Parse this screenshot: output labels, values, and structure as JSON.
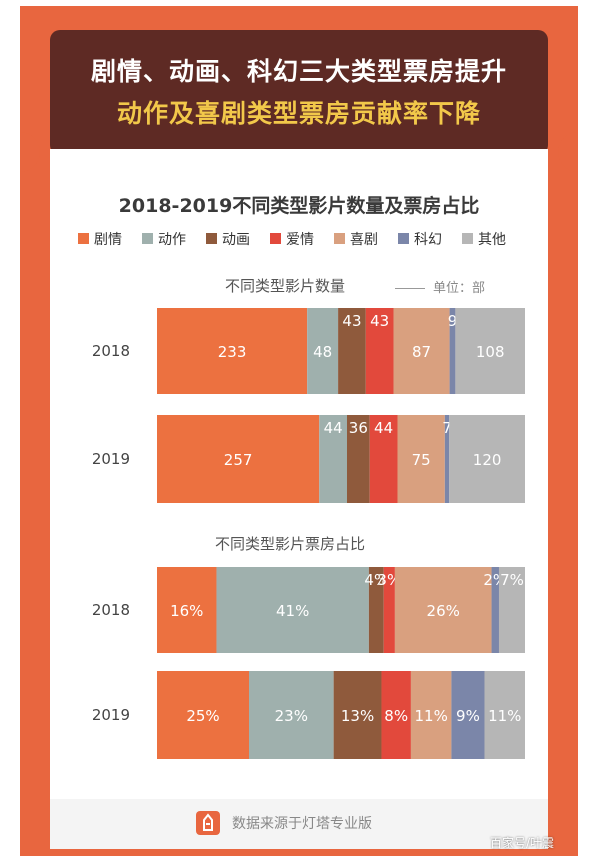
{
  "banner": {
    "line1": "剧情、动画、科幻三大类型票房提升",
    "line2": "动作及喜剧类型票房贡献率下降"
  },
  "chart_title": "2018-2019不同类型影片数量及票房占比",
  "legend": [
    {
      "label": "剧情",
      "color": "#ec7140"
    },
    {
      "label": "动作",
      "color": "#9fb0ad"
    },
    {
      "label": "动画",
      "color": "#8f5a3c"
    },
    {
      "label": "爱情",
      "color": "#e2493c"
    },
    {
      "label": "喜剧",
      "color": "#d9a07f"
    },
    {
      "label": "科幻",
      "color": "#7b86a9"
    },
    {
      "label": "其他",
      "color": "#b6b6b6"
    }
  ],
  "sections": {
    "count_title": "不同类型影片数量",
    "count_unit": "单位：部",
    "share_title": "不同类型影片票房占比"
  },
  "chart_data": [
    {
      "type": "bar",
      "stacked": true,
      "orientation": "horizontal",
      "title": "不同类型影片数量",
      "unit": "单位：部",
      "categories": [
        "2018",
        "2019"
      ],
      "series": [
        {
          "name": "剧情",
          "values": [
            233,
            257
          ]
        },
        {
          "name": "动作",
          "values": [
            48,
            44
          ]
        },
        {
          "name": "动画",
          "values": [
            43,
            36
          ]
        },
        {
          "name": "爱情",
          "values": [
            43,
            44
          ]
        },
        {
          "name": "喜剧",
          "values": [
            87,
            75
          ]
        },
        {
          "name": "科幻",
          "values": [
            9,
            7
          ]
        },
        {
          "name": "其他",
          "values": [
            108,
            120
          ]
        }
      ]
    },
    {
      "type": "bar",
      "stacked": true,
      "orientation": "horizontal",
      "title": "不同类型影片票房占比",
      "categories": [
        "2018",
        "2019"
      ],
      "series": [
        {
          "name": "剧情",
          "values": [
            16,
            25
          ]
        },
        {
          "name": "动作",
          "values": [
            41,
            23
          ]
        },
        {
          "name": "动画",
          "values": [
            4,
            13
          ]
        },
        {
          "name": "爱情",
          "values": [
            3,
            8
          ]
        },
        {
          "name": "喜剧",
          "values": [
            26,
            11
          ]
        },
        {
          "name": "科幻",
          "values": [
            2,
            9
          ]
        },
        {
          "name": "其他",
          "values": [
            7,
            11
          ]
        }
      ],
      "value_suffix": "%"
    }
  ],
  "footer": {
    "text": "数据来源于灯塔专业版"
  },
  "watermark": "百家号/叶震"
}
